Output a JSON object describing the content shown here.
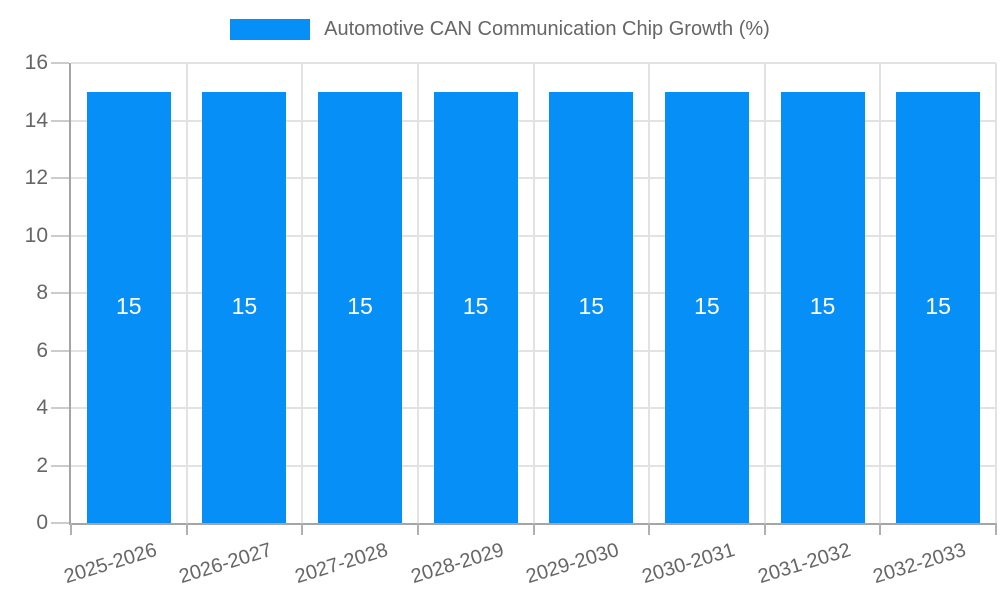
{
  "legend": {
    "label": "Automotive CAN Communication Chip Growth (%)"
  },
  "chart_data": {
    "type": "bar",
    "title": "Automotive CAN Communication Chip Growth (%)",
    "legend_position": "top",
    "legend_entries": [
      "Automotive CAN Communication Chip Growth (%)"
    ],
    "categories": [
      "2025-2026",
      "2026-2027",
      "2027-2028",
      "2028-2029",
      "2029-2030",
      "2030-2031",
      "2031-2032",
      "2032-2033"
    ],
    "series": [
      {
        "name": "Automotive CAN Communication Chip Growth (%)",
        "values": [
          15,
          15,
          15,
          15,
          15,
          15,
          15,
          15
        ]
      }
    ],
    "bar_value_labels": [
      "15",
      "15",
      "15",
      "15",
      "15",
      "15",
      "15",
      "15"
    ],
    "xlabel": "",
    "ylabel": "",
    "ylim": [
      0,
      16
    ],
    "yticks": [
      0,
      2,
      4,
      6,
      8,
      10,
      12,
      14,
      16
    ],
    "grid": true,
    "colors": {
      "bar": "#0690f7",
      "grid": "#e2e2e2",
      "axis": "#a5a5a5",
      "y_tick": "#cccccc",
      "x_tick": "#b0b0b0",
      "axis_label": "#666666",
      "value_label": "#ffffff",
      "legend_text": "#666666"
    }
  }
}
